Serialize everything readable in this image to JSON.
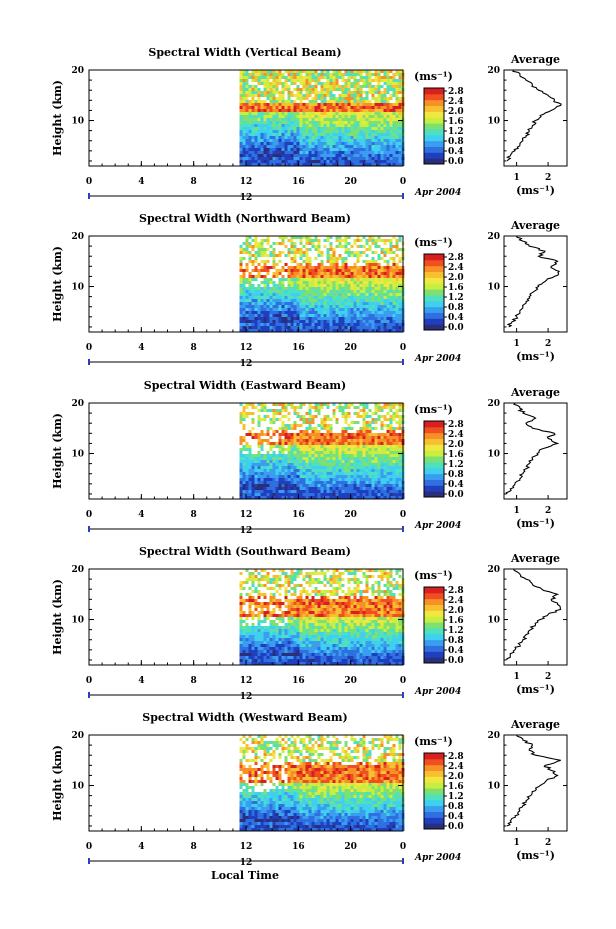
{
  "figure": {
    "xlabel_bottom": "Local Time",
    "date_label": "Apr 2004",
    "day_label": "12",
    "colorbar_unit": "(ms⁻¹)",
    "average_title": "Average",
    "average_xlabel": "(ms⁻¹)",
    "ylabel": "Height (km)"
  },
  "colorbar": {
    "ticks": [
      "2.8",
      "2.4",
      "2.0",
      "1.6",
      "1.2",
      "0.8",
      "0.4",
      "0.0"
    ],
    "colors": [
      "#2b2f7a",
      "#1f3fbf",
      "#2f6fe0",
      "#3a9ef0",
      "#3fd0f0",
      "#4fe0c0",
      "#7ee070",
      "#c8ee40",
      "#f0e840",
      "#f8c030",
      "#f89028",
      "#f05020",
      "#d82020"
    ]
  },
  "chart_data": [
    {
      "type": "heatmap",
      "title": "Spectral Width (Vertical Beam)",
      "xlabel": "",
      "ylabel": "Height (km)",
      "x_ticks": [
        "0",
        "4",
        "8",
        "12",
        "16",
        "20",
        "0"
      ],
      "xlim": [
        0,
        24
      ],
      "y_ticks": [
        "20",
        "10"
      ],
      "ylim": [
        1,
        20
      ],
      "data_start_hour": 11.5,
      "high_band_km": [
        12,
        14
      ],
      "average": {
        "title": "Average",
        "x_ticks": [
          "1",
          "2"
        ],
        "xlim": [
          0.6,
          2.6
        ],
        "profile": [
          [
            0.7,
            2
          ],
          [
            0.8,
            3
          ],
          [
            0.95,
            4
          ],
          [
            1.1,
            5
          ],
          [
            1.2,
            6
          ],
          [
            1.3,
            7
          ],
          [
            1.4,
            8
          ],
          [
            1.5,
            9
          ],
          [
            1.6,
            10
          ],
          [
            1.75,
            11
          ],
          [
            2.1,
            12
          ],
          [
            2.4,
            13
          ],
          [
            2.2,
            14
          ],
          [
            2.0,
            15
          ],
          [
            1.7,
            16
          ],
          [
            1.5,
            17
          ],
          [
            1.3,
            18
          ],
          [
            1.1,
            19
          ],
          [
            0.9,
            20
          ]
        ]
      }
    },
    {
      "type": "heatmap",
      "title": "Spectral Width (Northward Beam)",
      "xlabel": "",
      "ylabel": "Height (km)",
      "x_ticks": [
        "0",
        "4",
        "8",
        "12",
        "16",
        "20",
        "0"
      ],
      "xlim": [
        0,
        24
      ],
      "y_ticks": [
        "20",
        "10"
      ],
      "ylim": [
        1,
        20
      ],
      "data_start_hour": 11.5,
      "high_band_km": [
        12,
        15
      ],
      "average": {
        "title": "Average",
        "x_ticks": [
          "1",
          "2"
        ],
        "xlim": [
          0.6,
          2.6
        ],
        "profile": [
          [
            0.75,
            2
          ],
          [
            0.85,
            3
          ],
          [
            1.0,
            4
          ],
          [
            1.1,
            5
          ],
          [
            1.2,
            6
          ],
          [
            1.3,
            7
          ],
          [
            1.4,
            8
          ],
          [
            1.55,
            9
          ],
          [
            1.7,
            10
          ],
          [
            1.9,
            11
          ],
          [
            2.2,
            12
          ],
          [
            2.35,
            13
          ],
          [
            2.1,
            14
          ],
          [
            2.3,
            15
          ],
          [
            1.7,
            16
          ],
          [
            1.9,
            17
          ],
          [
            1.4,
            18
          ],
          [
            1.2,
            19
          ],
          [
            1.0,
            20
          ]
        ]
      }
    },
    {
      "type": "heatmap",
      "title": "Spectral Width (Eastward Beam)",
      "xlabel": "",
      "ylabel": "Height (km)",
      "x_ticks": [
        "0",
        "4",
        "8",
        "12",
        "16",
        "20",
        "0"
      ],
      "xlim": [
        0,
        24
      ],
      "y_ticks": [
        "20",
        "10"
      ],
      "ylim": [
        1,
        20
      ],
      "data_start_hour": 11.5,
      "high_band_km": [
        12,
        15
      ],
      "average": {
        "title": "Average",
        "x_ticks": [
          "1",
          "2"
        ],
        "xlim": [
          0.6,
          2.6
        ],
        "profile": [
          [
            0.7,
            2
          ],
          [
            0.8,
            3
          ],
          [
            0.95,
            4
          ],
          [
            1.1,
            5
          ],
          [
            1.2,
            6
          ],
          [
            1.3,
            7
          ],
          [
            1.4,
            8
          ],
          [
            1.5,
            9
          ],
          [
            1.65,
            10
          ],
          [
            1.85,
            11
          ],
          [
            2.3,
            12
          ],
          [
            2.0,
            13
          ],
          [
            2.2,
            14
          ],
          [
            1.5,
            15
          ],
          [
            1.3,
            16
          ],
          [
            1.6,
            17
          ],
          [
            1.2,
            18
          ],
          [
            1.1,
            19
          ],
          [
            0.95,
            20
          ]
        ]
      }
    },
    {
      "type": "heatmap",
      "title": "Spectral Width (Southward Beam)",
      "xlabel": "",
      "ylabel": "Height (km)",
      "x_ticks": [
        "0",
        "4",
        "8",
        "12",
        "16",
        "20",
        "0"
      ],
      "xlim": [
        0,
        24
      ],
      "y_ticks": [
        "20",
        "10"
      ],
      "ylim": [
        1,
        20
      ],
      "data_start_hour": 11.5,
      "high_band_km": [
        11,
        15
      ],
      "average": {
        "title": "Average",
        "x_ticks": [
          "1",
          "2"
        ],
        "xlim": [
          0.6,
          2.6
        ],
        "profile": [
          [
            0.7,
            2
          ],
          [
            0.8,
            3
          ],
          [
            0.95,
            4
          ],
          [
            1.1,
            5
          ],
          [
            1.2,
            6
          ],
          [
            1.3,
            7
          ],
          [
            1.45,
            8
          ],
          [
            1.6,
            9
          ],
          [
            1.75,
            10
          ],
          [
            2.0,
            11
          ],
          [
            2.4,
            12
          ],
          [
            2.3,
            13
          ],
          [
            2.1,
            14
          ],
          [
            2.3,
            15
          ],
          [
            1.8,
            16
          ],
          [
            1.5,
            17
          ],
          [
            1.3,
            18
          ],
          [
            1.1,
            19
          ],
          [
            0.9,
            20
          ]
        ]
      }
    },
    {
      "type": "heatmap",
      "title": "Spectral Width (Westward Beam)",
      "xlabel": "Local Time",
      "ylabel": "Height (km)",
      "x_ticks": [
        "0",
        "4",
        "8",
        "12",
        "16",
        "20",
        "0"
      ],
      "xlim": [
        0,
        24
      ],
      "y_ticks": [
        "20",
        "10"
      ],
      "ylim": [
        1,
        20
      ],
      "data_start_hour": 11.5,
      "high_band_km": [
        11,
        15
      ],
      "average": {
        "title": "Average",
        "x_ticks": [
          "1",
          "2"
        ],
        "xlim": [
          0.6,
          2.6
        ],
        "profile": [
          [
            0.7,
            2
          ],
          [
            0.8,
            3
          ],
          [
            0.95,
            4
          ],
          [
            1.1,
            5
          ],
          [
            1.2,
            6
          ],
          [
            1.3,
            7
          ],
          [
            1.45,
            8
          ],
          [
            1.6,
            9
          ],
          [
            1.75,
            10
          ],
          [
            1.95,
            11
          ],
          [
            2.3,
            12
          ],
          [
            2.1,
            13
          ],
          [
            1.9,
            14
          ],
          [
            2.4,
            15
          ],
          [
            1.6,
            16
          ],
          [
            1.4,
            17
          ],
          [
            1.5,
            18
          ],
          [
            1.2,
            19
          ],
          [
            1.0,
            20
          ]
        ]
      }
    }
  ]
}
